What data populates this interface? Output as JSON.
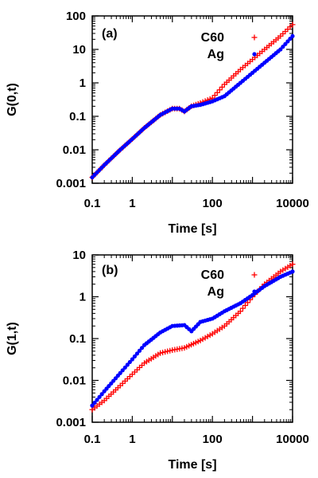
{
  "chart_data": [
    {
      "type": "scatter",
      "panel_label": "(a)",
      "xlabel": "Time [s]",
      "ylabel": "G(0,t)",
      "xscale": "log",
      "yscale": "log",
      "xlim": [
        0.1,
        10000
      ],
      "ylim": [
        0.001,
        100
      ],
      "xticks": [
        0.1,
        1,
        100,
        10000
      ],
      "xtick_labels": [
        "0.1",
        "1",
        "100",
        "10000"
      ],
      "yticks": [
        0.001,
        0.01,
        0.1,
        1,
        10,
        100
      ],
      "ytick_labels": [
        "0.001",
        "0.01",
        "0.1",
        "1",
        "10",
        "100"
      ],
      "legend_position": "top-right",
      "series": [
        {
          "name": "C60",
          "marker": "plus",
          "color": "#ff0000",
          "points": [
            [
              0.1,
              0.0015
            ],
            [
              0.2,
              0.0035
            ],
            [
              0.5,
              0.01
            ],
            [
              1,
              0.021
            ],
            [
              2,
              0.045
            ],
            [
              5,
              0.11
            ],
            [
              10,
              0.17
            ],
            [
              15,
              0.17
            ],
            [
              20,
              0.14
            ],
            [
              30,
              0.2
            ],
            [
              50,
              0.25
            ],
            [
              100,
              0.35
            ],
            [
              200,
              0.9
            ],
            [
              500,
              2.5
            ],
            [
              1000,
              5
            ],
            [
              2000,
              10
            ],
            [
              5000,
              25
            ],
            [
              10000,
              55
            ]
          ]
        },
        {
          "name": "Ag",
          "marker": "dot",
          "color": "#0000ff",
          "points": [
            [
              0.1,
              0.0015
            ],
            [
              0.2,
              0.0035
            ],
            [
              0.5,
              0.01
            ],
            [
              1,
              0.021
            ],
            [
              2,
              0.045
            ],
            [
              5,
              0.11
            ],
            [
              10,
              0.17
            ],
            [
              15,
              0.17
            ],
            [
              20,
              0.14
            ],
            [
              30,
              0.2
            ],
            [
              50,
              0.22
            ],
            [
              100,
              0.28
            ],
            [
              200,
              0.4
            ],
            [
              500,
              1
            ],
            [
              1000,
              2
            ],
            [
              2000,
              4
            ],
            [
              5000,
              10
            ],
            [
              10000,
              25
            ]
          ]
        }
      ]
    },
    {
      "type": "scatter",
      "panel_label": "(b)",
      "xlabel": "Time [s]",
      "ylabel": "G(1,t)",
      "xscale": "log",
      "yscale": "log",
      "xlim": [
        0.1,
        10000
      ],
      "ylim": [
        0.001,
        10
      ],
      "xticks": [
        0.1,
        1,
        100,
        10000
      ],
      "xtick_labels": [
        "0.1",
        "1",
        "100",
        "10000"
      ],
      "yticks": [
        0.001,
        0.01,
        0.1,
        1,
        10
      ],
      "ytick_labels": [
        "0.001",
        "0.01",
        "0.1",
        "1",
        "10"
      ],
      "legend_position": "top-right",
      "series": [
        {
          "name": "C60",
          "marker": "plus",
          "color": "#ff0000",
          "points": [
            [
              0.1,
              0.002
            ],
            [
              0.2,
              0.0033
            ],
            [
              0.5,
              0.0075
            ],
            [
              1,
              0.014
            ],
            [
              2,
              0.026
            ],
            [
              5,
              0.045
            ],
            [
              10,
              0.053
            ],
            [
              20,
              0.06
            ],
            [
              50,
              0.09
            ],
            [
              100,
              0.13
            ],
            [
              200,
              0.2
            ],
            [
              500,
              0.45
            ],
            [
              1000,
              1
            ],
            [
              2000,
              2
            ],
            [
              5000,
              4
            ],
            [
              10000,
              6
            ]
          ]
        },
        {
          "name": "Ag",
          "marker": "dot",
          "color": "#0000ff",
          "points": [
            [
              0.1,
              0.0025
            ],
            [
              0.2,
              0.0055
            ],
            [
              0.5,
              0.015
            ],
            [
              1,
              0.032
            ],
            [
              2,
              0.07
            ],
            [
              5,
              0.14
            ],
            [
              10,
              0.2
            ],
            [
              20,
              0.21
            ],
            [
              30,
              0.15
            ],
            [
              50,
              0.25
            ],
            [
              100,
              0.3
            ],
            [
              200,
              0.45
            ],
            [
              500,
              0.7
            ],
            [
              1000,
              1.1
            ],
            [
              2000,
              1.8
            ],
            [
              5000,
              3
            ],
            [
              10000,
              4
            ]
          ]
        }
      ]
    }
  ]
}
